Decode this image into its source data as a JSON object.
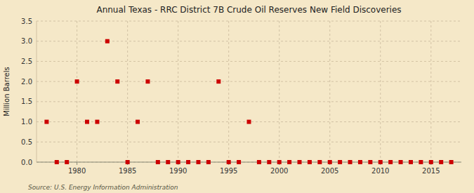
{
  "chart_data": {
    "type": "scatter",
    "title": "Annual Texas - RRC District 7B Crude Oil Reserves New Field Discoveries",
    "ylabel": "Million Barrels",
    "annotation": "Source: U.S. Energy Information Administration",
    "color": "#cc0000",
    "marker": "square",
    "grid": true,
    "xlim": [
      1976,
      2018
    ],
    "ylim": [
      0.0,
      3.5
    ],
    "xticks": [
      1980,
      1985,
      1990,
      1995,
      2000,
      2005,
      2010,
      2015
    ],
    "yticks": [
      {
        "value": 0.0,
        "label": "0.0"
      },
      {
        "value": 0.5,
        "label": "0.5"
      },
      {
        "value": 1.0,
        "label": "1.0"
      },
      {
        "value": 1.5,
        "label": "1.5"
      },
      {
        "value": 2.0,
        "label": "2.0"
      },
      {
        "value": 2.5,
        "label": "2.5"
      },
      {
        "value": 3.0,
        "label": "3.0"
      },
      {
        "value": 3.5,
        "label": "3.5"
      }
    ],
    "x": [
      1977,
      1978,
      1979,
      1980,
      1981,
      1982,
      1983,
      1984,
      1985,
      1986,
      1987,
      1988,
      1989,
      1990,
      1991,
      1992,
      1993,
      1994,
      1995,
      1996,
      1997,
      1998,
      1999,
      2000,
      2001,
      2002,
      2003,
      2004,
      2005,
      2006,
      2007,
      2008,
      2009,
      2010,
      2011,
      2012,
      2013,
      2014,
      2015,
      2016,
      2017
    ],
    "values": [
      1.0,
      0.0,
      0.0,
      2.0,
      1.0,
      1.0,
      3.0,
      2.0,
      0.0,
      1.0,
      2.0,
      0.0,
      0.0,
      0.0,
      0.0,
      0.0,
      0.0,
      2.0,
      0.0,
      0.0,
      1.0,
      0.0,
      0.0,
      0.0,
      0.0,
      0.0,
      0.0,
      0.0,
      0.0,
      0.0,
      0.0,
      0.0,
      0.0,
      0.0,
      0.0,
      0.0,
      0.0,
      0.0,
      0.0,
      0.0,
      0.0
    ]
  }
}
